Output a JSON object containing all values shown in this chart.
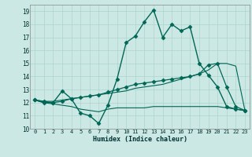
{
  "title": "",
  "xlabel": "Humidex (Indice chaleur)",
  "xlim": [
    -0.5,
    23.5
  ],
  "ylim": [
    10,
    19.5
  ],
  "yticks": [
    10,
    11,
    12,
    13,
    14,
    15,
    16,
    17,
    18,
    19
  ],
  "xticks": [
    0,
    1,
    2,
    3,
    4,
    5,
    6,
    7,
    8,
    9,
    10,
    11,
    12,
    13,
    14,
    15,
    16,
    17,
    18,
    19,
    20,
    21,
    22,
    23
  ],
  "bg_color": "#cce8e4",
  "grid_color": "#aad4cc",
  "line_color": "#006655",
  "series": [
    {
      "x": [
        0,
        1,
        2,
        3,
        4,
        5,
        6,
        7,
        8,
        9,
        10,
        11,
        12,
        13,
        14,
        15,
        16,
        17,
        18,
        19,
        20,
        21,
        22,
        23
      ],
      "y": [
        12.2,
        12.0,
        12.0,
        12.9,
        12.3,
        11.2,
        11.0,
        10.4,
        11.8,
        13.8,
        16.6,
        17.1,
        18.2,
        19.1,
        17.0,
        18.0,
        17.5,
        17.8,
        15.0,
        14.1,
        13.2,
        11.7,
        11.5,
        11.4
      ],
      "marker": "D",
      "markersize": 2.5,
      "linewidth": 1.0
    },
    {
      "x": [
        0,
        1,
        2,
        3,
        4,
        5,
        6,
        7,
        8,
        9,
        10,
        11,
        12,
        13,
        14,
        15,
        16,
        17,
        18,
        19,
        20,
        21,
        22,
        23
      ],
      "y": [
        12.2,
        12.0,
        11.9,
        11.8,
        11.7,
        11.5,
        11.4,
        11.3,
        11.5,
        11.6,
        11.6,
        11.6,
        11.6,
        11.7,
        11.7,
        11.7,
        11.7,
        11.7,
        11.7,
        11.7,
        11.7,
        11.6,
        11.5,
        11.4
      ],
      "marker": null,
      "markersize": 0,
      "linewidth": 0.8
    },
    {
      "x": [
        0,
        1,
        2,
        3,
        4,
        5,
        6,
        7,
        8,
        9,
        10,
        11,
        12,
        13,
        14,
        15,
        16,
        17,
        18,
        19,
        20,
        21,
        22,
        23
      ],
      "y": [
        12.2,
        12.1,
        12.1,
        12.2,
        12.3,
        12.4,
        12.5,
        12.6,
        12.7,
        12.8,
        12.9,
        13.1,
        13.2,
        13.3,
        13.4,
        13.6,
        13.8,
        14.0,
        14.2,
        14.5,
        15.0,
        15.0,
        14.8,
        11.4
      ],
      "marker": null,
      "markersize": 0,
      "linewidth": 0.8
    },
    {
      "x": [
        0,
        1,
        2,
        3,
        4,
        5,
        6,
        7,
        8,
        9,
        10,
        11,
        12,
        13,
        14,
        15,
        16,
        17,
        18,
        19,
        20,
        21,
        22,
        23
      ],
      "y": [
        12.2,
        12.1,
        12.0,
        12.1,
        12.3,
        12.4,
        12.5,
        12.6,
        12.8,
        13.0,
        13.2,
        13.4,
        13.5,
        13.6,
        13.7,
        13.8,
        13.9,
        14.0,
        14.2,
        14.9,
        15.0,
        13.2,
        11.7,
        11.4
      ],
      "marker": "D",
      "markersize": 2.5,
      "linewidth": 0.9
    }
  ]
}
